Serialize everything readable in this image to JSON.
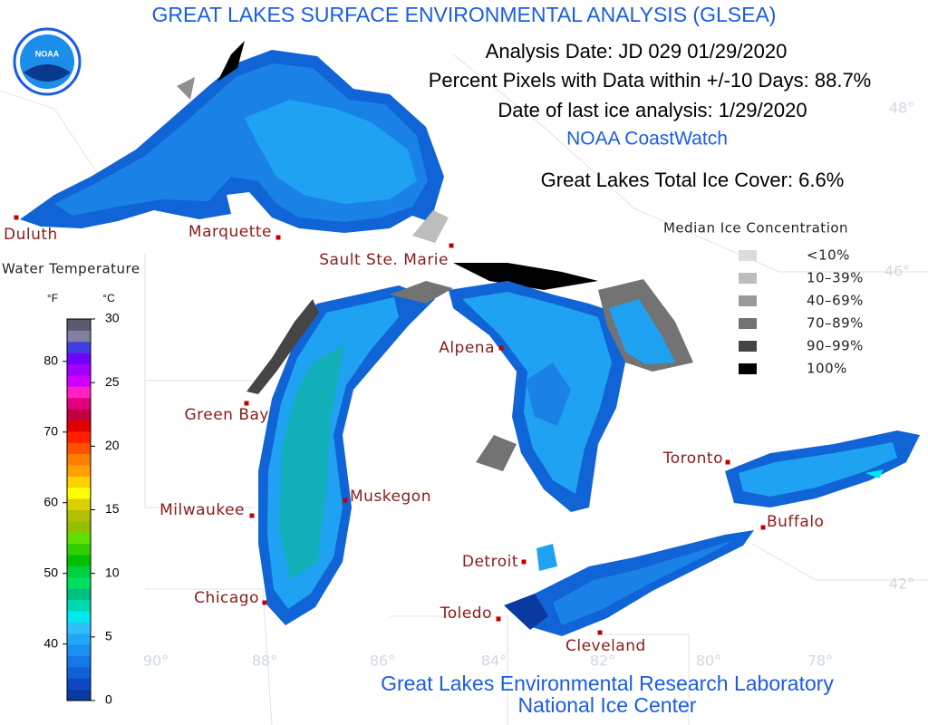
{
  "header": {
    "title": "GREAT LAKES SURFACE ENVIRONMENTAL ANALYSIS (GLSEA)",
    "logo_text": "NOAA",
    "analysis_date": "Analysis Date:  JD 029 01/29/2020",
    "percent_pixels": "Percent Pixels with Data within +/-10 Days:  88.7%",
    "ice_analysis_date": "Date of last ice analysis: 1/29/2020",
    "source": "NOAA CoastWatch",
    "total_ice_cover": "Great Lakes Total Ice Cover:   6.6%"
  },
  "ice_legend": {
    "title": "Median Ice Concentration",
    "items": [
      {
        "label": "<10%",
        "color": "#dcdcdc"
      },
      {
        "label": "10–39%",
        "color": "#bdbdbd"
      },
      {
        "label": "40–69%",
        "color": "#9a9a9a"
      },
      {
        "label": "70–89%",
        "color": "#737373"
      },
      {
        "label": "90–99%",
        "color": "#454545"
      },
      {
        "label": "100%",
        "color": "#000000"
      }
    ]
  },
  "colorbar": {
    "title": "Water Temperature",
    "f_unit": "°F",
    "c_unit": "°C",
    "clim": [
      0,
      30
    ],
    "cticks": [
      0,
      5,
      10,
      15,
      20,
      25,
      30
    ],
    "fticks": [
      40,
      50,
      60,
      70,
      80
    ],
    "colors": [
      "#0a3aa0",
      "#0d48c0",
      "#1060d8",
      "#1478e8",
      "#1a90f0",
      "#20a8f5",
      "#30c0f8",
      "#00e8f0",
      "#00d8b0",
      "#00c080",
      "#00e060",
      "#00d040",
      "#00c000",
      "#30d000",
      "#60e000",
      "#90c000",
      "#b0c000",
      "#d8d000",
      "#ffff00",
      "#ffd000",
      "#ffa000",
      "#ff8000",
      "#ff5000",
      "#ff2000",
      "#e00000",
      "#c00040",
      "#e00080",
      "#ff20c0",
      "#d000ff",
      "#a000ff",
      "#7000ff",
      "#4040e0",
      "#8080a0",
      "#5a5a70"
    ]
  },
  "cities": [
    "Duluth",
    "Marquette",
    "Sault Ste. Marie",
    "Green Bay",
    "Alpena",
    "Milwaukee",
    "Muskegon",
    "Chicago",
    "Detroit",
    "Toledo",
    "Cleveland",
    "Toronto",
    "Buffalo"
  ],
  "graticule": [
    "48°",
    "46°",
    "42°",
    "90°",
    "88°",
    "86°",
    "84°",
    "82°",
    "80°",
    "78°"
  ],
  "footer": {
    "line1": "Great Lakes Environmental Research Laboratory",
    "line2": "National Ice Center"
  }
}
